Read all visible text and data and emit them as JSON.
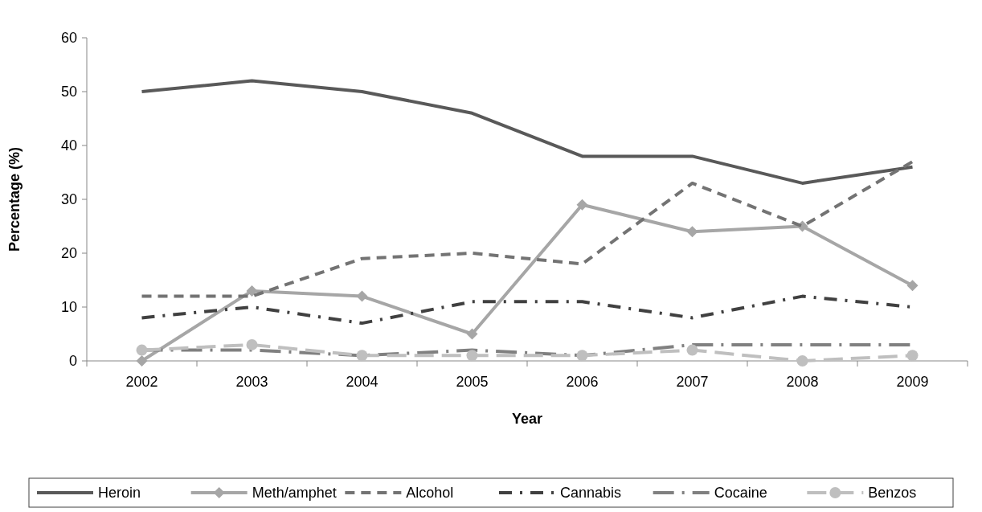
{
  "chart_data": {
    "type": "line",
    "xlabel": "Year",
    "ylabel": "Percentage (%)",
    "categories": [
      "2002",
      "2003",
      "2004",
      "2005",
      "2006",
      "2007",
      "2008",
      "2009"
    ],
    "series": [
      {
        "name": "Heroin",
        "color": "#595959",
        "values": [
          50,
          52,
          50,
          46,
          38,
          38,
          33,
          36
        ],
        "line_style": "solid",
        "marker": "none"
      },
      {
        "name": "Meth/amphet",
        "color": "#a6a6a6",
        "values": [
          0,
          13,
          12,
          5,
          29,
          24,
          25,
          14
        ],
        "line_style": "solid",
        "marker": "diamond"
      },
      {
        "name": "Alcohol",
        "color": "#737373",
        "values": [
          12,
          12,
          19,
          20,
          18,
          33,
          25,
          37
        ],
        "line_style": "dashed",
        "marker": "none"
      },
      {
        "name": "Cannabis",
        "color": "#404040",
        "values": [
          8,
          10,
          7,
          11,
          11,
          8,
          12,
          10
        ],
        "line_style": "dashdot",
        "marker": "none"
      },
      {
        "name": "Cocaine",
        "color": "#808080",
        "values": [
          2,
          2,
          1,
          2,
          1,
          3,
          3,
          3
        ],
        "line_style": "longdashdot",
        "marker": "none"
      },
      {
        "name": "Benzos",
        "color": "#bfbfbf",
        "values": [
          2,
          3,
          1,
          1,
          1,
          2,
          0,
          1
        ],
        "line_style": "longdash",
        "marker": "circle"
      }
    ],
    "ylim": [
      0,
      60
    ],
    "yticks": [
      0,
      10,
      20,
      30,
      40,
      50,
      60
    ],
    "grid": false,
    "legend": "bottom"
  }
}
